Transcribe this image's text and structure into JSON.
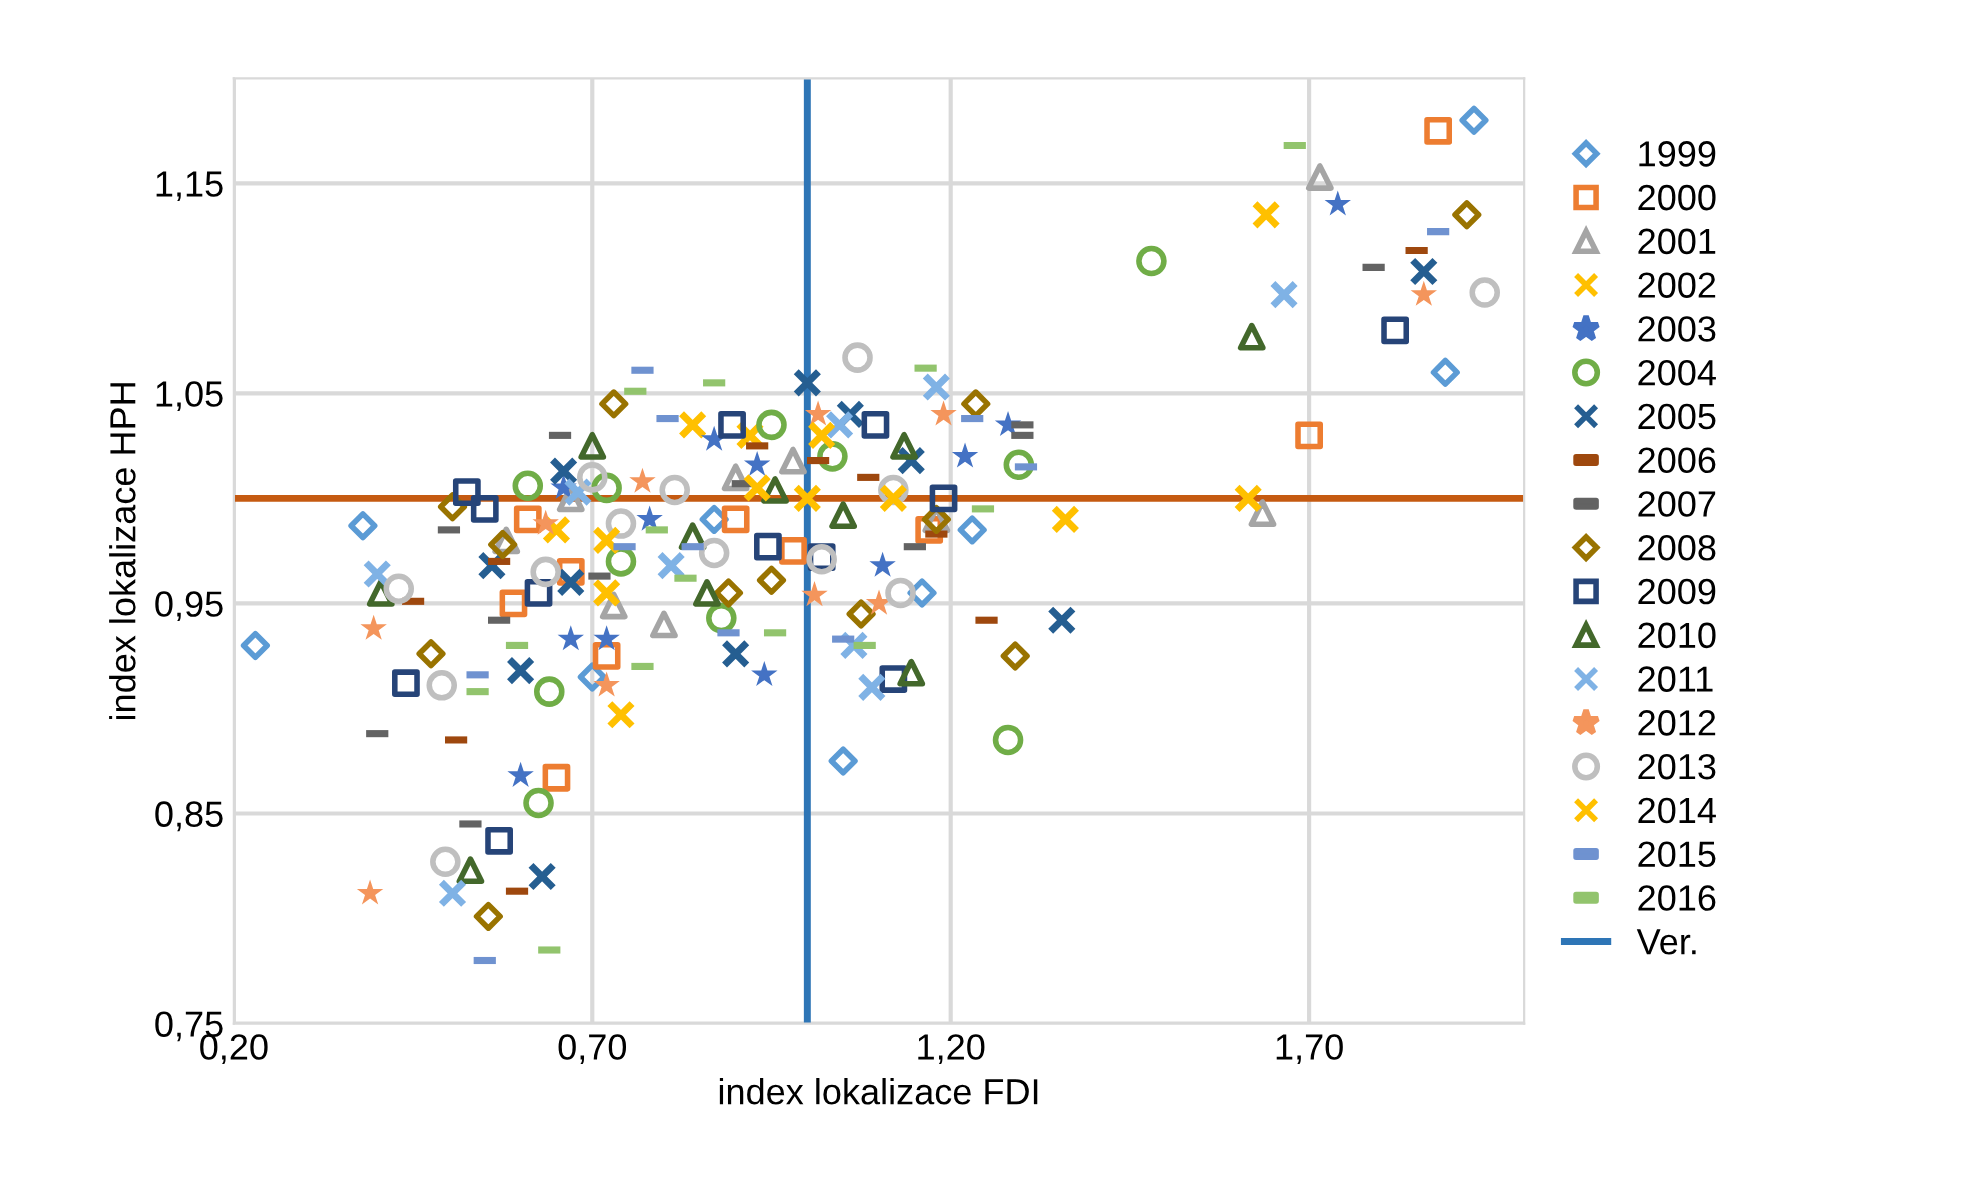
{
  "chart_data": {
    "type": "scatter",
    "xlabel": "index lokalizace FDI",
    "ylabel": "index lokalizace HPH",
    "xlim": [
      0.2,
      2.0
    ],
    "ylim": [
      0.75,
      1.2
    ],
    "xticks": [
      {
        "value": 0.2,
        "label": "0,20"
      },
      {
        "value": 0.7,
        "label": "0,70"
      },
      {
        "value": 1.2,
        "label": "1,20"
      },
      {
        "value": 1.7,
        "label": "1,70"
      }
    ],
    "yticks": [
      {
        "value": 0.75,
        "label": "0,75"
      },
      {
        "value": 0.85,
        "label": "0,85"
      },
      {
        "value": 0.95,
        "label": "0,95"
      },
      {
        "value": 1.05,
        "label": "1,05"
      },
      {
        "value": 1.15,
        "label": "1,15"
      }
    ],
    "grid": true,
    "legend": "right",
    "ref_lines": [
      {
        "axis": "y",
        "value": 1.0,
        "color": "#c55a11"
      }
    ],
    "series": [
      {
        "name": "1999",
        "color": "#5b9bd5",
        "marker": "diamond",
        "x": [
          0.38,
          0.23,
          1.05,
          1.93,
          1.89,
          1.23,
          1.16,
          0.7,
          0.87
        ],
        "values": [
          0.987,
          0.93,
          0.875,
          1.18,
          1.06,
          0.985,
          0.955,
          0.915,
          0.99
        ]
      },
      {
        "name": "2000",
        "color": "#ed7d31",
        "marker": "square",
        "x": [
          1.88,
          1.7,
          0.65,
          0.59,
          0.61,
          0.67,
          0.9,
          1.17,
          0.98,
          0.72
        ],
        "values": [
          1.175,
          1.03,
          0.867,
          0.95,
          0.99,
          0.965,
          0.99,
          0.985,
          0.975,
          0.925
        ]
      },
      {
        "name": "2001",
        "color": "#a5a5a5",
        "marker": "triangle",
        "x": [
          1.715,
          1.635,
          0.73,
          0.8,
          0.98,
          1.18,
          0.58,
          0.67,
          0.9
        ],
        "values": [
          1.153,
          0.993,
          0.949,
          0.94,
          1.018,
          0.99,
          0.98,
          1.0,
          1.01
        ]
      },
      {
        "name": "2002",
        "color": "#ffc000",
        "marker": "cross",
        "x": [
          1.64,
          1.615,
          1.36,
          0.74,
          0.72,
          0.84,
          0.65,
          0.92,
          1.0
        ],
        "values": [
          1.135,
          1.0,
          0.99,
          0.897,
          0.955,
          1.035,
          0.985,
          1.03,
          1.0
        ]
      },
      {
        "name": "2003",
        "color": "#4472c4",
        "marker": "star",
        "x": [
          0.6,
          0.67,
          0.72,
          0.94,
          0.87,
          0.93,
          1.22,
          1.28,
          1.74,
          1.105,
          0.66,
          0.78
        ],
        "values": [
          0.868,
          0.933,
          0.933,
          0.916,
          1.028,
          1.016,
          1.02,
          1.035,
          1.14,
          0.968,
          1.005,
          0.99
        ]
      },
      {
        "name": "2004",
        "color": "#70ad47",
        "marker": "circle",
        "x": [
          1.48,
          1.28,
          1.295,
          0.625,
          0.64,
          0.74,
          0.88,
          0.61,
          0.95,
          1.035,
          0.72
        ],
        "values": [
          1.113,
          0.885,
          1.016,
          0.855,
          0.908,
          0.97,
          0.943,
          1.006,
          1.035,
          1.02,
          1.005
        ]
      },
      {
        "name": "2005",
        "color": "#255e91",
        "marker": "cross",
        "x": [
          1.86,
          1.355,
          0.63,
          0.6,
          0.56,
          0.67,
          0.9,
          0.66,
          1.0,
          1.06,
          1.145
        ],
        "values": [
          1.108,
          0.942,
          0.82,
          0.918,
          0.968,
          0.96,
          0.926,
          1.013,
          1.055,
          1.04,
          1.018
        ]
      },
      {
        "name": "2006",
        "color": "#9e480e",
        "x": [
          1.85,
          1.25,
          0.51,
          0.595,
          0.45,
          0.57,
          0.93,
          1.015,
          1.085,
          1.18
        ],
        "values": [
          1.118,
          0.942,
          0.885,
          0.813,
          0.951,
          0.97,
          1.025,
          1.018,
          1.01,
          0.983
        ]
      },
      {
        "name": "2007",
        "color": "#636363",
        "x": [
          1.79,
          1.3,
          1.3,
          0.4,
          0.53,
          0.57,
          0.71,
          0.5,
          0.655,
          0.91,
          1.15
        ],
        "values": [
          1.11,
          1.035,
          1.03,
          0.888,
          0.845,
          0.942,
          0.963,
          0.985,
          1.03,
          1.007,
          0.977
        ]
      },
      {
        "name": "2008",
        "color": "#997300",
        "marker": "diamond",
        "x": [
          1.92,
          1.235,
          1.29,
          1.18,
          0.475,
          0.555,
          0.575,
          0.505,
          0.89,
          0.95,
          1.075,
          0.73
        ],
        "values": [
          1.135,
          1.045,
          0.925,
          0.99,
          0.926,
          0.801,
          0.978,
          0.996,
          0.955,
          0.961,
          0.945,
          1.045
        ]
      },
      {
        "name": "2009",
        "color": "#264478",
        "marker": "square",
        "x": [
          1.82,
          1.095,
          1.19,
          0.44,
          0.57,
          0.625,
          0.945,
          1.02,
          0.895,
          0.525,
          0.55,
          1.12
        ],
        "values": [
          1.08,
          1.035,
          1.0,
          0.912,
          0.837,
          0.955,
          0.977,
          0.972,
          1.035,
          1.003,
          0.995,
          0.914
        ]
      },
      {
        "name": "2010",
        "color": "#43682b",
        "marker": "triangle",
        "x": [
          1.62,
          1.135,
          1.145,
          0.53,
          0.405,
          0.86,
          1.05,
          0.84,
          0.7,
          0.955
        ],
        "values": [
          1.077,
          1.025,
          0.917,
          0.823,
          0.955,
          0.955,
          0.992,
          0.982,
          1.025,
          1.004
        ]
      },
      {
        "name": "2011",
        "color": "#7fb2e5",
        "marker": "cross",
        "x": [
          1.665,
          0.505,
          1.09,
          1.18,
          1.045,
          0.68,
          0.81,
          1.065,
          0.4
        ],
        "values": [
          1.097,
          0.812,
          0.91,
          1.053,
          1.035,
          1.003,
          0.968,
          0.93,
          0.964
        ]
      },
      {
        "name": "2012",
        "color": "#f4955c",
        "marker": "star",
        "x": [
          1.86,
          1.19,
          0.395,
          0.39,
          0.72,
          1.01,
          0.635,
          0.77,
          1.015,
          1.1
        ],
        "values": [
          1.097,
          1.04,
          0.938,
          0.812,
          0.911,
          0.954,
          0.988,
          1.008,
          1.04,
          0.95
        ]
      },
      {
        "name": "2013",
        "color": "#bfbfbf",
        "marker": "circle",
        "x": [
          1.945,
          1.07,
          0.43,
          0.49,
          0.495,
          0.74,
          0.635,
          0.87,
          1.02,
          0.7,
          0.815,
          1.12,
          1.13
        ],
        "values": [
          1.098,
          1.067,
          0.957,
          0.911,
          0.827,
          0.988,
          0.965,
          0.974,
          0.971,
          1.01,
          1.004,
          1.004,
          0.955
        ]
      },
      {
        "name": "2014",
        "color": "#ffc000",
        "marker": "cross",
        "x": [
          1.02,
          0.93,
          1.12,
          0.72
        ],
        "values": [
          1.03,
          1.005,
          1.0,
          0.98
        ]
      },
      {
        "name": "2015",
        "color": "#6f92d0",
        "x": [
          0.77,
          0.805,
          1.88,
          1.305,
          1.23,
          0.54,
          0.55,
          0.745,
          0.84,
          0.89,
          1.05
        ],
        "values": [
          1.061,
          1.038,
          1.127,
          1.015,
          1.038,
          0.916,
          0.78,
          0.977,
          0.977,
          0.936,
          0.933
        ]
      },
      {
        "name": "2016",
        "color": "#92c46d",
        "x": [
          1.68,
          1.165,
          1.245,
          0.76,
          0.87,
          0.595,
          0.54,
          0.64,
          0.77,
          0.79,
          0.83,
          0.955,
          1.08
        ],
        "values": [
          1.168,
          1.062,
          0.995,
          1.051,
          1.055,
          0.93,
          0.908,
          0.785,
          0.92,
          0.985,
          0.962,
          0.936,
          0.93
        ]
      },
      {
        "name": "Ver.",
        "type": "line",
        "color": "#2e75b6",
        "marker": "none",
        "x": [
          1.0,
          1.0
        ],
        "values": [
          0.75,
          1.2
        ]
      }
    ]
  }
}
